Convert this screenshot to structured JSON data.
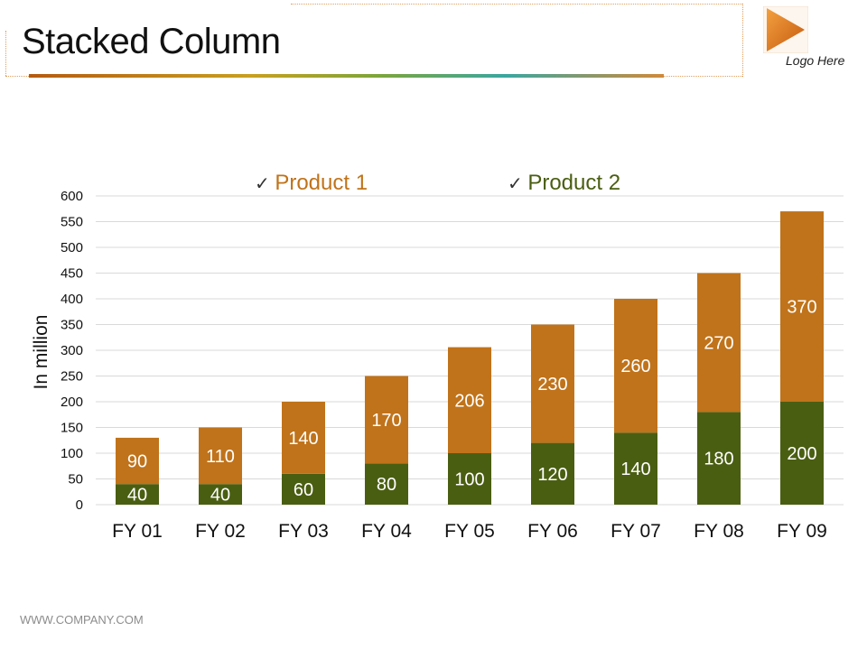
{
  "slide": {
    "title": "Stacked Column",
    "logo_text": "Logo Here",
    "footer": "WWW.COMPANY.COM"
  },
  "colors": {
    "product1": "#c0731a",
    "product2": "#4a5e12",
    "logo": "#e07820"
  },
  "chart_data": {
    "type": "bar",
    "stacked": true,
    "title": "",
    "xlabel": "",
    "ylabel": "In million",
    "ylim": [
      0,
      600
    ],
    "ystep": 50,
    "grid": true,
    "legend_position": "top",
    "categories": [
      "FY 01",
      "FY 02",
      "FY 03",
      "FY 04",
      "FY 05",
      "FY 06",
      "FY 07",
      "FY 08",
      "FY 09"
    ],
    "series": [
      {
        "name": "Product 2",
        "values": [
          40,
          40,
          60,
          80,
          100,
          120,
          140,
          180,
          200
        ]
      },
      {
        "name": "Product 1",
        "values": [
          90,
          110,
          140,
          170,
          206,
          230,
          260,
          270,
          370
        ]
      }
    ],
    "legend": [
      {
        "name": "Product 1",
        "marker": "✓"
      },
      {
        "name": "Product 2",
        "marker": "✓"
      }
    ]
  }
}
